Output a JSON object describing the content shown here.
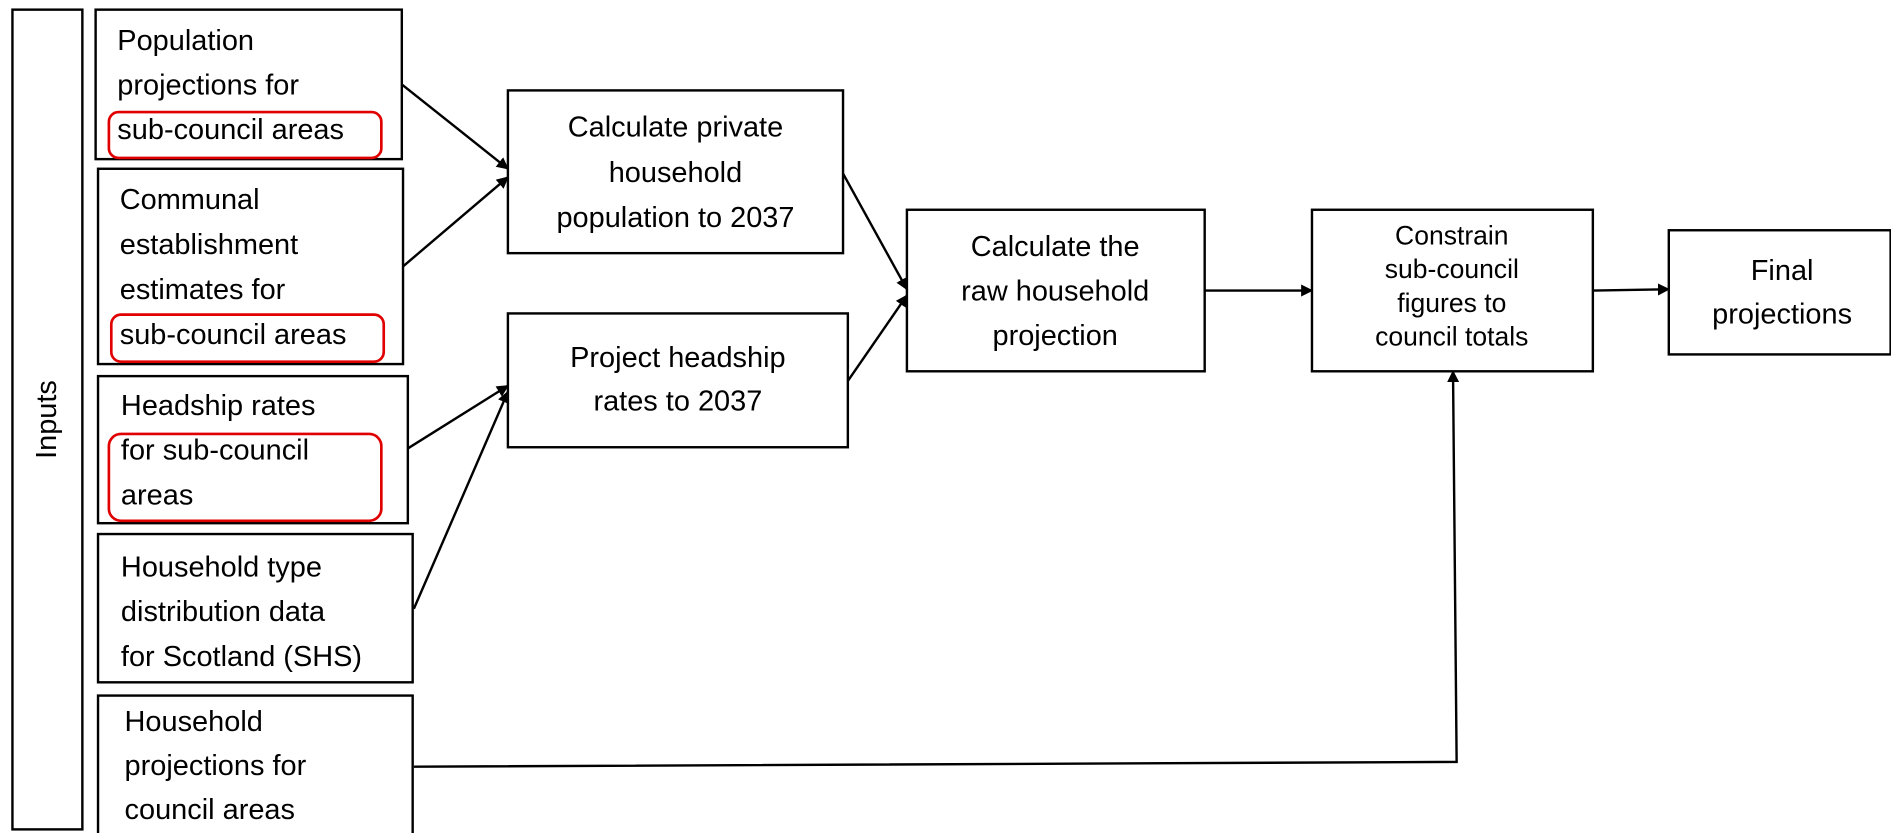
{
  "side_label": "Inputs",
  "inputs": [
    {
      "lines": [
        "Population",
        "projections for",
        "sub-council areas"
      ]
    },
    {
      "lines": [
        "Communal",
        "establishment",
        "estimates for",
        "sub-council areas"
      ]
    },
    {
      "lines": [
        "Headship rates",
        "for sub-council",
        "areas"
      ]
    },
    {
      "lines": [
        "Household type",
        "distribution data",
        "for Scotland (SHS)"
      ]
    },
    {
      "lines": [
        "Household",
        "projections for",
        "council areas"
      ]
    }
  ],
  "steps": [
    {
      "lines": [
        "Calculate private",
        "household",
        "population to 2037"
      ]
    },
    {
      "lines": [
        "Project headship",
        "rates to 2037"
      ]
    },
    {
      "lines": [
        "Calculate the",
        "raw household",
        "projection"
      ]
    },
    {
      "lines": [
        "Constrain",
        "sub-council",
        "figures to",
        "council totals"
      ]
    },
    {
      "lines": [
        "Final",
        "projections"
      ]
    }
  ]
}
